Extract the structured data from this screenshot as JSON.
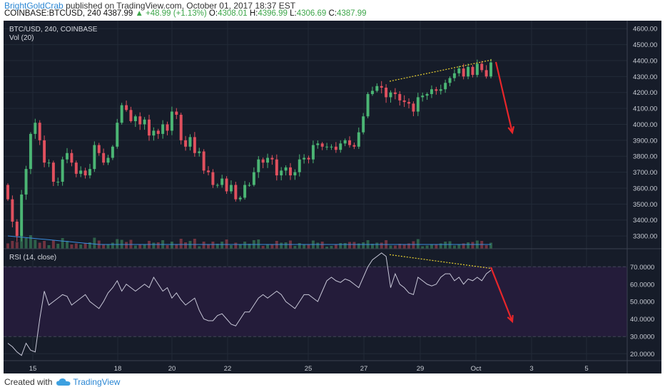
{
  "header": {
    "author": "BrightGoldCrab",
    "published": "published on TradingView.com, October 01, 2017 18:37 EST",
    "symbol": "COINBASE:BTCUSD, 240",
    "last": "4387.99",
    "change": "▲ +48.99 (+1.13%)",
    "o_label": "O:",
    "o": "4308.01",
    "h_label": "H:",
    "h": "4396.99",
    "l_label": "L:",
    "l": "4306.69",
    "c_label": "C:",
    "c": "4387.99"
  },
  "footer": {
    "created_with": "Created with",
    "brand": "TradingView"
  },
  "colors": {
    "bg": "#161c29",
    "up": "#4bb574",
    "down": "#e0505e",
    "rsi_band": "#241c3a",
    "rsi_line": "#c8c8d8",
    "vol_ma": "#3a8de0",
    "arrow": "#e8262a",
    "trend": "#e8d032"
  },
  "chart_data": [
    {
      "type": "candlestick",
      "title": "BTC/USD, 240, COINBASE",
      "subtitle": "Vol (20)",
      "ylim": [
        3220,
        4650
      ],
      "y_ticks": [
        3300,
        3400,
        3500,
        3600,
        3700,
        3800,
        3900,
        4000,
        4100,
        4200,
        4300,
        4400,
        4500,
        4600
      ],
      "y_tick_labels": [
        "3300.00",
        "3400.00",
        "3500.00",
        "3600.00",
        "3700.00",
        "3800.00",
        "3900.00",
        "4000.00",
        "4100.00",
        "4200.00",
        "4300.00",
        "4400.00",
        "4500.00",
        "4600.00"
      ],
      "x_ticks": [
        "15",
        "18",
        "20",
        "22",
        "25",
        "27",
        "29",
        "Oct",
        "3",
        "5"
      ],
      "closes": [
        3530,
        3390,
        3300,
        3560,
        3720,
        3940,
        4010,
        3900,
        3760,
        3760,
        3640,
        3640,
        3780,
        3820,
        3760,
        3690,
        3710,
        3680,
        3720,
        3870,
        3820,
        3760,
        3790,
        3860,
        4010,
        4120,
        4090,
        4020,
        4050,
        4000,
        4030,
        3930,
        3960,
        3940,
        4000,
        3960,
        4080,
        4060,
        3900,
        3860,
        3920,
        3820,
        3830,
        3710,
        3700,
        3620,
        3620,
        3660,
        3580,
        3620,
        3530,
        3540,
        3620,
        3620,
        3700,
        3780,
        3760,
        3790,
        3780,
        3680,
        3710,
        3730,
        3680,
        3700,
        3780,
        3790,
        3780,
        3870,
        3880,
        3860,
        3860,
        3860,
        3840,
        3880,
        3900,
        3870,
        3860,
        3950,
        4050,
        4190,
        4210,
        4240,
        4230,
        4170,
        4200,
        4190,
        4150,
        4140,
        4130,
        4080,
        4170,
        4180,
        4190,
        4220,
        4210,
        4220,
        4260,
        4290,
        4320,
        4350,
        4300,
        4360,
        4310,
        4380,
        4340,
        4300,
        4388
      ]
    },
    {
      "type": "line",
      "title": "RSI (14, close)",
      "ylim": [
        16,
        80
      ],
      "y_ticks": [
        20,
        30,
        40,
        50,
        60,
        70
      ],
      "y_tick_labels": [
        "20.0000",
        "30.0000",
        "40.0000",
        "50.0000",
        "60.0000",
        "70.0000"
      ],
      "band": [
        30,
        70
      ],
      "values": [
        26,
        24,
        21,
        19,
        26,
        22,
        21,
        40,
        56,
        48,
        50,
        52,
        54,
        53,
        48,
        50,
        52,
        54,
        50,
        48,
        46,
        50,
        55,
        58,
        62,
        56,
        60,
        58,
        56,
        58,
        60,
        58,
        64,
        60,
        56,
        58,
        52,
        55,
        51,
        48,
        50,
        52,
        45,
        40,
        39,
        39,
        42,
        43,
        40,
        37,
        36,
        40,
        44,
        44,
        48,
        52,
        54,
        52,
        54,
        56,
        54,
        50,
        48,
        46,
        50,
        54,
        54,
        52,
        50,
        56,
        62,
        64,
        62,
        61,
        63,
        62,
        60,
        58,
        64,
        70,
        74,
        76,
        78,
        76,
        58,
        66,
        60,
        58,
        55,
        54,
        64,
        62,
        60,
        59,
        60,
        64,
        66,
        66,
        62,
        64,
        60,
        63,
        62,
        64,
        62,
        66,
        68
      ]
    }
  ]
}
